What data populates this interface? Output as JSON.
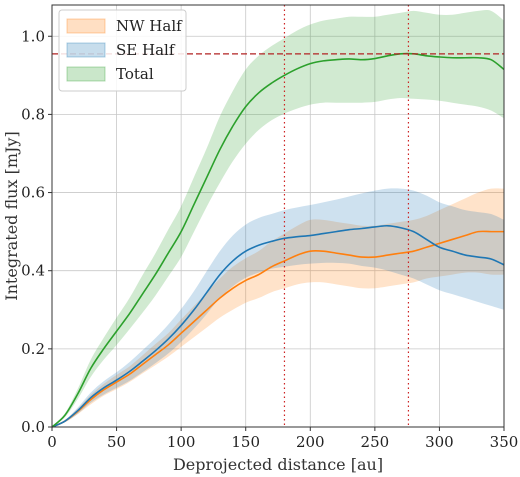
{
  "chart_data": {
    "type": "line",
    "title": "",
    "xlabel": "Deprojected distance [au]",
    "ylabel": "Integrated flux [mJy]",
    "xlim": [
      0,
      350
    ],
    "ylim": [
      0,
      1.08
    ],
    "xticks": [
      0,
      50,
      100,
      150,
      200,
      250,
      300,
      350
    ],
    "yticks": [
      0.0,
      0.2,
      0.4,
      0.6,
      0.8,
      1.0
    ],
    "xtick_labels": [
      "0",
      "50",
      "100",
      "150",
      "200",
      "250",
      "300",
      "350"
    ],
    "ytick_labels": [
      "0.0",
      "0.2",
      "0.4",
      "0.6",
      "0.8",
      "1.0"
    ],
    "grid": true,
    "legend_position": "top-left",
    "x": [
      0,
      10,
      20,
      30,
      40,
      50,
      60,
      70,
      80,
      90,
      100,
      110,
      120,
      130,
      140,
      150,
      160,
      170,
      180,
      190,
      200,
      210,
      220,
      230,
      240,
      250,
      260,
      270,
      280,
      290,
      300,
      310,
      320,
      330,
      340,
      350
    ],
    "series": [
      {
        "name": "NW Half",
        "color": "#ff7f0e",
        "values": [
          0.0,
          0.015,
          0.04,
          0.07,
          0.095,
          0.115,
          0.135,
          0.16,
          0.185,
          0.21,
          0.24,
          0.27,
          0.3,
          0.33,
          0.355,
          0.375,
          0.39,
          0.41,
          0.425,
          0.44,
          0.45,
          0.45,
          0.445,
          0.44,
          0.435,
          0.435,
          0.44,
          0.445,
          0.45,
          0.46,
          0.47,
          0.48,
          0.49,
          0.5,
          0.5,
          0.5
        ],
        "lower": [
          0.0,
          0.012,
          0.033,
          0.058,
          0.08,
          0.097,
          0.115,
          0.137,
          0.158,
          0.18,
          0.205,
          0.23,
          0.255,
          0.28,
          0.3,
          0.318,
          0.33,
          0.345,
          0.355,
          0.365,
          0.37,
          0.37,
          0.365,
          0.36,
          0.355,
          0.355,
          0.36,
          0.365,
          0.37,
          0.38,
          0.385,
          0.39,
          0.395,
          0.395,
          0.39,
          0.39
        ],
        "upper": [
          0.0,
          0.018,
          0.047,
          0.082,
          0.11,
          0.133,
          0.155,
          0.183,
          0.212,
          0.24,
          0.275,
          0.31,
          0.345,
          0.38,
          0.41,
          0.432,
          0.45,
          0.475,
          0.495,
          0.515,
          0.53,
          0.53,
          0.525,
          0.52,
          0.515,
          0.515,
          0.52,
          0.525,
          0.53,
          0.54,
          0.555,
          0.57,
          0.585,
          0.6,
          0.61,
          0.61
        ]
      },
      {
        "name": "SE Half",
        "color": "#1f77b4",
        "values": [
          0.0,
          0.015,
          0.042,
          0.075,
          0.1,
          0.12,
          0.142,
          0.168,
          0.195,
          0.225,
          0.26,
          0.3,
          0.345,
          0.39,
          0.425,
          0.45,
          0.465,
          0.475,
          0.483,
          0.487,
          0.49,
          0.495,
          0.5,
          0.505,
          0.508,
          0.512,
          0.515,
          0.51,
          0.5,
          0.48,
          0.46,
          0.45,
          0.44,
          0.435,
          0.43,
          0.415
        ],
        "lower": [
          0.0,
          0.012,
          0.034,
          0.062,
          0.083,
          0.1,
          0.118,
          0.14,
          0.163,
          0.188,
          0.218,
          0.252,
          0.29,
          0.33,
          0.36,
          0.382,
          0.395,
          0.405,
          0.41,
          0.415,
          0.418,
          0.42,
          0.42,
          0.418,
          0.412,
          0.408,
          0.4,
          0.39,
          0.38,
          0.365,
          0.35,
          0.34,
          0.33,
          0.32,
          0.31,
          0.3
        ],
        "upper": [
          0.0,
          0.018,
          0.05,
          0.088,
          0.117,
          0.14,
          0.166,
          0.196,
          0.227,
          0.262,
          0.302,
          0.348,
          0.4,
          0.45,
          0.49,
          0.518,
          0.535,
          0.545,
          0.555,
          0.562,
          0.568,
          0.575,
          0.582,
          0.59,
          0.598,
          0.605,
          0.61,
          0.61,
          0.605,
          0.592,
          0.575,
          0.565,
          0.555,
          0.55,
          0.545,
          0.53
        ]
      },
      {
        "name": "Total",
        "color": "#2ca02c",
        "values": [
          0.0,
          0.03,
          0.085,
          0.15,
          0.2,
          0.245,
          0.29,
          0.34,
          0.39,
          0.445,
          0.5,
          0.57,
          0.64,
          0.71,
          0.77,
          0.82,
          0.855,
          0.88,
          0.9,
          0.917,
          0.93,
          0.937,
          0.94,
          0.942,
          0.94,
          0.943,
          0.95,
          0.955,
          0.955,
          0.95,
          0.947,
          0.945,
          0.945,
          0.945,
          0.94,
          0.915
        ],
        "lower": [
          0.0,
          0.025,
          0.072,
          0.128,
          0.172,
          0.21,
          0.25,
          0.292,
          0.336,
          0.385,
          0.435,
          0.5,
          0.565,
          0.625,
          0.68,
          0.725,
          0.76,
          0.785,
          0.802,
          0.815,
          0.825,
          0.83,
          0.83,
          0.83,
          0.83,
          0.832,
          0.838,
          0.842,
          0.84,
          0.838,
          0.835,
          0.83,
          0.825,
          0.82,
          0.81,
          0.79
        ],
        "upper": [
          0.0,
          0.035,
          0.098,
          0.172,
          0.228,
          0.28,
          0.33,
          0.388,
          0.444,
          0.505,
          0.565,
          0.64,
          0.715,
          0.795,
          0.86,
          0.915,
          0.95,
          0.975,
          0.995,
          1.015,
          1.03,
          1.04,
          1.045,
          1.05,
          1.05,
          1.05,
          1.055,
          1.06,
          1.065,
          1.06,
          1.055,
          1.055,
          1.06,
          1.065,
          1.065,
          1.04
        ]
      }
    ],
    "reference_lines": [
      {
        "orientation": "horizontal",
        "value": 0.955,
        "color": "#b22222",
        "style": "dashed"
      },
      {
        "orientation": "vertical",
        "value": 180,
        "color": "#cc2222",
        "style": "dotted"
      },
      {
        "orientation": "vertical",
        "value": 276,
        "color": "#cc2222",
        "style": "dotted"
      }
    ]
  }
}
